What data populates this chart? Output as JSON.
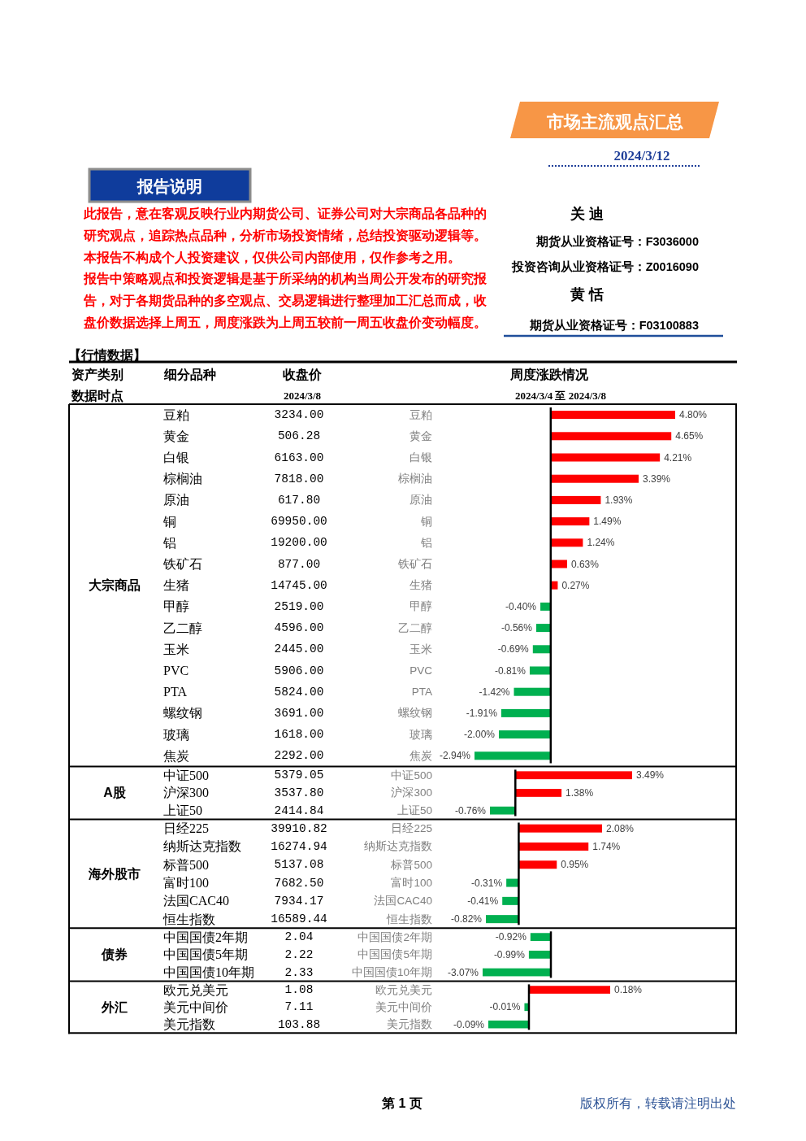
{
  "chart_data": [
    {
      "type": "other",
      "title": "市场主流观点汇总",
      "subtitle": "2024/3/12",
      "annotations": [
        "报告说明",
        "此报告，意在客观反映行业内期货公司、证券公司对大宗商品各品种的研究观点，追踪热点品种，分析市场投资情绪，总结投资驱动逻辑等。",
        "本报告不构成个人投资建议，仅供公司内部使用，仅作参考之用。",
        "报告中策略观点和投资逻辑是基于所采纳的机构当周公开发布的研究报告，对于各期货品种的多空观点、交易逻辑进行整理加工汇总而成，收盘价数据选择上周五，周度涨跌为上周五较前一周五收盘价变动幅度。",
        "关 迪",
        "期货从业资格证号：F3036000",
        "投资咨询从业资格证号：Z0016090",
        "黄 恬",
        "期货从业资格证号：F03100883"
      ]
    },
    {
      "type": "other",
      "title": "【行情数据】",
      "annotations": [
        "资产类别",
        "细分品种",
        "收盘价",
        "周度涨跌情况",
        "数据时点",
        "2024/3/8",
        "2024/3/4 至 2024/3/8"
      ]
    },
    {
      "type": "bar",
      "orientation": "horizontal",
      "ylabel": "大宗商品",
      "categories": [
        "豆粕",
        "黄金",
        "白银",
        "棕榈油",
        "原油",
        "铜",
        "铝",
        "铁矿石",
        "生猪",
        "甲醇",
        "乙二醇",
        "玉米",
        "PVC",
        "PTA",
        "螺纹钢",
        "玻璃",
        "焦炭"
      ],
      "values": [
        4.8,
        4.65,
        4.21,
        3.39,
        1.93,
        1.49,
        1.24,
        0.63,
        0.27,
        -0.4,
        -0.56,
        -0.69,
        -0.81,
        -1.42,
        -1.91,
        -2.0,
        -2.94
      ],
      "colors": [
        "#ff0000",
        "#ff0000",
        "#ff0000",
        "#ff0000",
        "#ff0000",
        "#ff0000",
        "#ff0000",
        "#ff0000",
        "#ff0000",
        "#00b050",
        "#00b050",
        "#00b050",
        "#00b050",
        "#00b050",
        "#00b050",
        "#00b050",
        "#00b050"
      ],
      "value_labels": [
        "4.80%",
        "4.65%",
        "4.21%",
        "3.39%",
        "1.93%",
        "1.49%",
        "1.24%",
        "0.63%",
        "0.27%",
        "-0.40%",
        "-0.56%",
        "-0.69%",
        "-0.81%",
        "-1.42%",
        "-1.91%",
        "-2.00%",
        "-2.94%"
      ],
      "annotations": [
        "3234.00",
        "506.28",
        "6163.00",
        "7818.00",
        "617.80",
        "69950.00",
        "19200.00",
        "877.00",
        "14745.00",
        "2519.00",
        "4596.00",
        "2445.00",
        "5906.00",
        "5824.00",
        "3691.00",
        "1618.00",
        "2292.00"
      ],
      "tick_labels": "y"
    },
    {
      "type": "bar",
      "orientation": "horizontal",
      "ylabel": "A股",
      "categories": [
        "中证500",
        "沪深300",
        "上证50"
      ],
      "values": [
        3.49,
        1.38,
        -0.76
      ],
      "colors": [
        "#ff0000",
        "#ff0000",
        "#00b050"
      ],
      "value_labels": [
        "3.49%",
        "1.38%",
        "-0.76%"
      ],
      "annotations": [
        "5379.05",
        "3537.80",
        "2414.84"
      ],
      "tick_labels": "y"
    },
    {
      "type": "bar",
      "orientation": "horizontal",
      "ylabel": "海外股市",
      "categories": [
        "日经225",
        "纳斯达克指数",
        "标普500",
        "富时100",
        "法国CAC40",
        "恒生指数"
      ],
      "values": [
        2.08,
        1.74,
        0.95,
        -0.31,
        -0.41,
        -0.82
      ],
      "colors": [
        "#ff0000",
        "#ff0000",
        "#ff0000",
        "#00b050",
        "#00b050",
        "#00b050"
      ],
      "value_labels": [
        "2.08%",
        "1.74%",
        "0.95%",
        "-0.31%",
        "-0.41%",
        "-0.82%"
      ],
      "annotations": [
        "39910.82",
        "16274.94",
        "5137.08",
        "7682.50",
        "7934.17",
        "16589.44"
      ],
      "tick_labels": "y"
    },
    {
      "type": "bar",
      "orientation": "horizontal",
      "ylabel": "债券",
      "categories": [
        "中国国债2年期",
        "中国国债5年期",
        "中国国债10年期"
      ],
      "values": [
        -0.92,
        -0.99,
        -3.07
      ],
      "colors": [
        "#00b050",
        "#00b050",
        "#00b050"
      ],
      "value_labels": [
        "-0.92%",
        "-0.99%",
        "-3.07%"
      ],
      "annotations": [
        "2.04",
        "2.22",
        "2.33"
      ],
      "tick_labels": "y"
    },
    {
      "type": "bar",
      "orientation": "horizontal",
      "ylabel": "外汇",
      "categories": [
        "欧元兑美元",
        "美元中间价",
        "美元指数"
      ],
      "values": [
        0.18,
        -0.01,
        -0.09
      ],
      "colors": [
        "#ff0000",
        "#00b050",
        "#00b050"
      ],
      "value_labels": [
        "0.18%",
        "-0.01%",
        "-0.09%"
      ],
      "annotations": [
        "1.08",
        "7.11",
        "103.88"
      ],
      "tick_labels": "y"
    },
    {
      "type": "other",
      "annotations": [
        "第 1 页",
        "版权所有，转载请注明出处"
      ]
    }
  ]
}
